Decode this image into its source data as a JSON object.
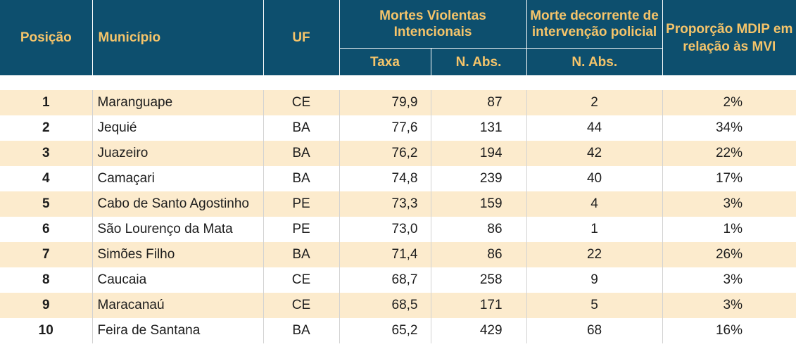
{
  "header": {
    "posicao": "Posição",
    "municipio": "Município",
    "uf": "UF",
    "mvi_group": "Mortes Violentas Intencionais",
    "mdip_group": "Morte decorrente de intervenção policial",
    "proporcao": "Proporção MDIP em relação às MVI",
    "taxa": "Taxa",
    "n_abs_mvi": "N. Abs.",
    "n_abs_mdip": "N. Abs."
  },
  "rows": [
    {
      "posicao": "1",
      "municipio": "Maranguape",
      "uf": "CE",
      "taxa": "79,9",
      "n_abs": "87",
      "mdip": "2",
      "proporcao": "2%"
    },
    {
      "posicao": "2",
      "municipio": "Jequié",
      "uf": "BA",
      "taxa": "77,6",
      "n_abs": "131",
      "mdip": "44",
      "proporcao": "34%"
    },
    {
      "posicao": "3",
      "municipio": "Juazeiro",
      "uf": "BA",
      "taxa": "76,2",
      "n_abs": "194",
      "mdip": "42",
      "proporcao": "22%"
    },
    {
      "posicao": "4",
      "municipio": "Camaçari",
      "uf": "BA",
      "taxa": "74,8",
      "n_abs": "239",
      "mdip": "40",
      "proporcao": "17%"
    },
    {
      "posicao": "5",
      "municipio": "Cabo de Santo Agostinho",
      "uf": "PE",
      "taxa": "73,3",
      "n_abs": "159",
      "mdip": "4",
      "proporcao": "3%"
    },
    {
      "posicao": "6",
      "municipio": "São Lourenço da Mata",
      "uf": "PE",
      "taxa": "73,0",
      "n_abs": "86",
      "mdip": "1",
      "proporcao": "1%"
    },
    {
      "posicao": "7",
      "municipio": "Simões Filho",
      "uf": "BA",
      "taxa": "71,4",
      "n_abs": "86",
      "mdip": "22",
      "proporcao": "26%"
    },
    {
      "posicao": "8",
      "municipio": "Caucaia",
      "uf": "CE",
      "taxa": "68,7",
      "n_abs": "258",
      "mdip": "9",
      "proporcao": "3%"
    },
    {
      "posicao": "9",
      "municipio": "Maracanaú",
      "uf": "CE",
      "taxa": "68,5",
      "n_abs": "171",
      "mdip": "5",
      "proporcao": "3%"
    },
    {
      "posicao": "10",
      "municipio": "Feira de Santana",
      "uf": "BA",
      "taxa": "65,2",
      "n_abs": "429",
      "mdip": "68",
      "proporcao": "16%"
    }
  ],
  "colors": {
    "header_bg": "#0d4f6e",
    "header_text": "#f5c46a",
    "row_stripe": "#fcebcd"
  }
}
